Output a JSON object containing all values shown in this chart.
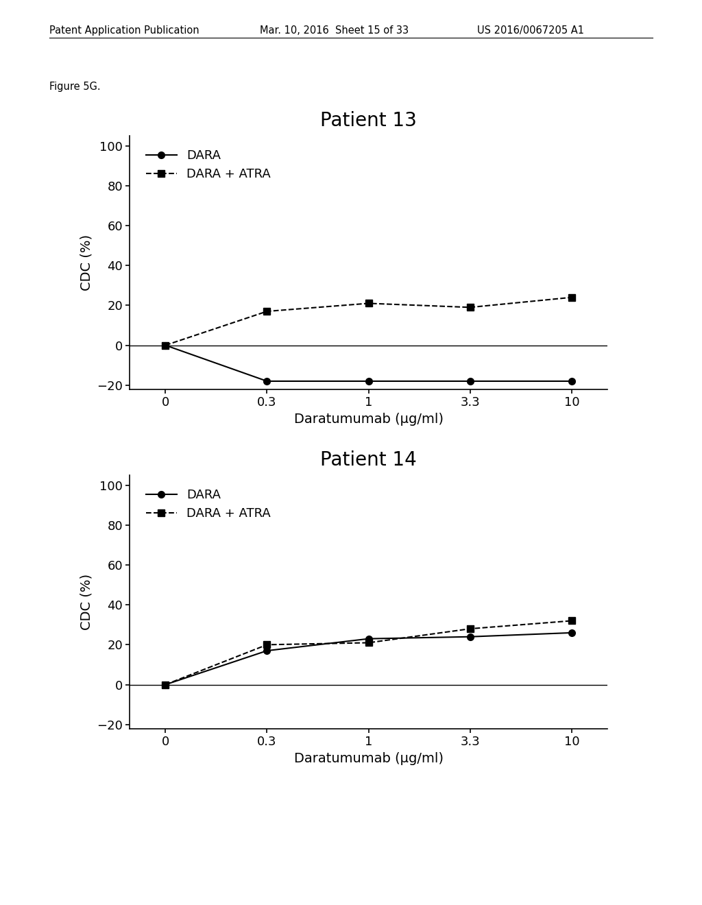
{
  "header_left": "Patent Application Publication",
  "header_mid": "Mar. 10, 2016  Sheet 15 of 33",
  "header_right": "US 2016/0067205 A1",
  "figure_label": "Figure 5G.",
  "x_positions": [
    0,
    1,
    2,
    3,
    4
  ],
  "x_tick_labels": [
    "0",
    "0.3",
    "1",
    "3.3",
    "10"
  ],
  "xlabel": "Daratumumab (μg/ml)",
  "ylabel": "CDC (%)",
  "ylim": [
    -22,
    105
  ],
  "yticks": [
    -20,
    0,
    20,
    40,
    60,
    80,
    100
  ],
  "plot1": {
    "title": "Patient 13",
    "dara_y": [
      0,
      -18,
      -18,
      -18,
      -18
    ],
    "atra_y": [
      0,
      17,
      21,
      19,
      24
    ]
  },
  "plot2": {
    "title": "Patient 14",
    "dara_y": [
      0,
      17,
      23,
      24,
      26
    ],
    "atra_y": [
      0,
      20,
      21,
      28,
      32
    ]
  },
  "line_color": "#000000",
  "bg_color": "#ffffff",
  "dara_label": "DARA",
  "atra_label": "DARA + ATRA",
  "marker_size": 7,
  "line_width": 1.5,
  "title_fontsize": 20,
  "label_fontsize": 14,
  "tick_fontsize": 13,
  "legend_fontsize": 13,
  "header_fontsize": 10.5
}
